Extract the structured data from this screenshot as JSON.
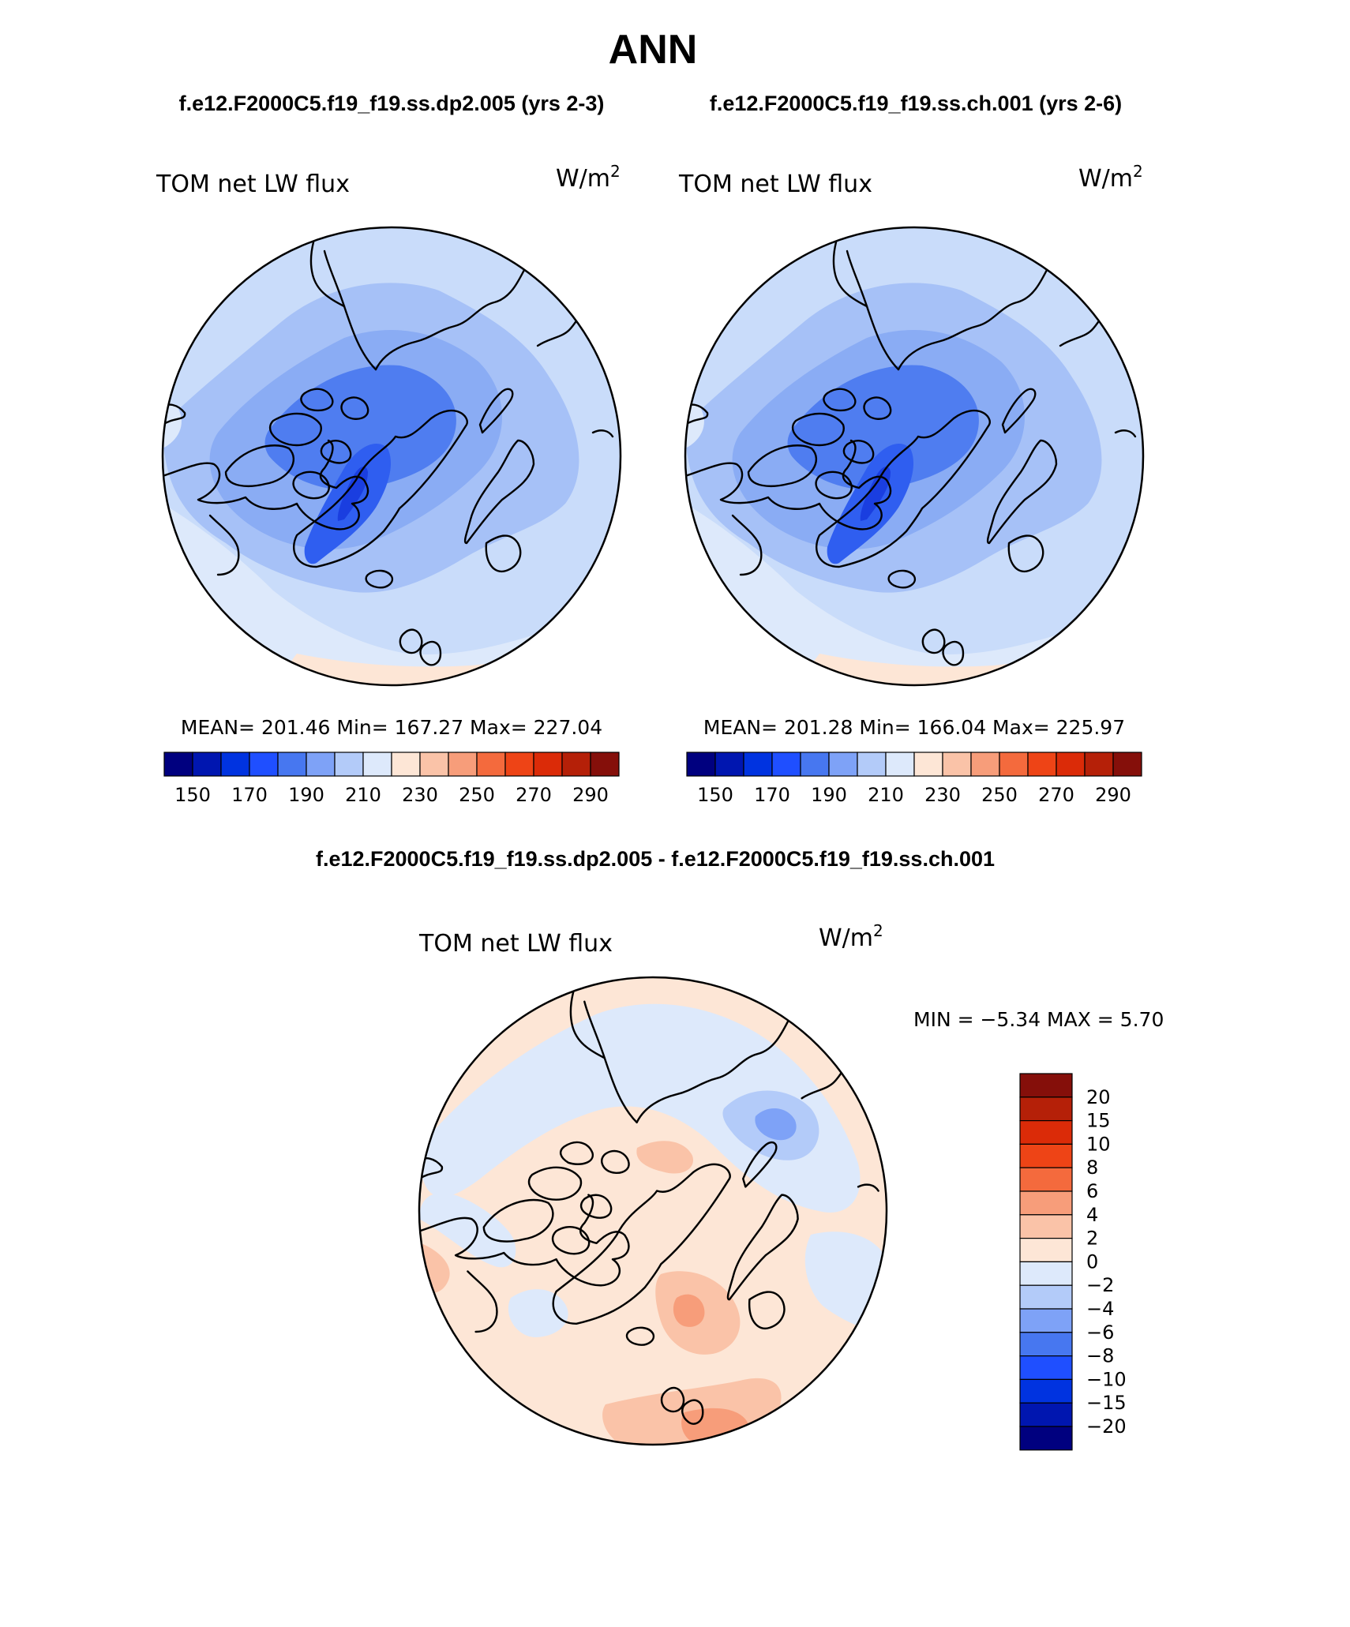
{
  "figure": {
    "title": "ANN",
    "case_a_label": "f.e12.F2000C5.f19_f19.ss.dp2.005 (yrs 2-3)",
    "case_b_label": "f.e12.F2000C5.f19_f19.ss.ch.001 (yrs 2-6)",
    "diff_title": "f.e12.F2000C5.f19_f19.ss.dp2.005 - f.e12.F2000C5.f19_f19.ss.ch.001"
  },
  "panels": [
    {
      "variable": "TOM net LW flux",
      "units_base": "W/m",
      "units_exp": "2",
      "stats_text": "MEAN= 201.46   Min= 167.27   Max= 227.04",
      "mean": 201.46,
      "min": 167.27,
      "max": 227.04
    },
    {
      "variable": "TOM net LW flux",
      "units_base": "W/m",
      "units_exp": "2",
      "stats_text": "MEAN= 201.28   Min= 166.04   Max= 225.97",
      "mean": 201.28,
      "min": 166.04,
      "max": 225.97
    },
    {
      "variable": "TOM net LW flux",
      "units_base": "W/m",
      "units_exp": "2",
      "stats_text": "MIN =   −5.34 MAX =    5.70",
      "min": -5.34,
      "max": 5.7
    }
  ],
  "colorbar_abs": {
    "colors": [
      "#00007f",
      "#0016b0",
      "#0033e0",
      "#1f4fff",
      "#4777f0",
      "#7ea2f7",
      "#b3cbf9",
      "#dde9fb",
      "#fde6d6",
      "#fac3a8",
      "#f79d7a",
      "#f46a3d",
      "#ee4416",
      "#db2b08",
      "#b52008",
      "#850f0a"
    ],
    "labels": [
      "150",
      "170",
      "190",
      "210",
      "230",
      "250",
      "270",
      "290"
    ]
  },
  "colorbar_diff": {
    "colors": [
      "#850f0a",
      "#b52008",
      "#db2b08",
      "#ee4416",
      "#f46a3d",
      "#f79d7a",
      "#fac3a8",
      "#fde6d6",
      "#dde9fb",
      "#b3cbf9",
      "#7ea2f7",
      "#4777f0",
      "#1f4fff",
      "#0033e0",
      "#0016b0",
      "#00007f"
    ],
    "labels": [
      "20",
      "15",
      "10",
      "8",
      "6",
      "4",
      "2",
      "0",
      "−2",
      "−4",
      "−6",
      "−8",
      "−10",
      "−15",
      "−20"
    ]
  },
  "map_colors": {
    "abs_outer": "#c9dcfa",
    "abs_ring": "#a6c1f7",
    "abs_mid": "#8aacf4",
    "abs_core": "#4f7df0",
    "abs_green_core": "#2f5ef0",
    "abs_green_peak": "#1a3ee0",
    "abs_edge": "#dde9fb",
    "abs_warm": "#fde6d6",
    "diff_base": "#fde6d6",
    "diff_neg1": "#dde9fb",
    "diff_neg2": "#b3cbf9",
    "diff_neg3": "#7ea2f7",
    "diff_pos2": "#fac3a8",
    "diff_pos3": "#f79d7a"
  }
}
